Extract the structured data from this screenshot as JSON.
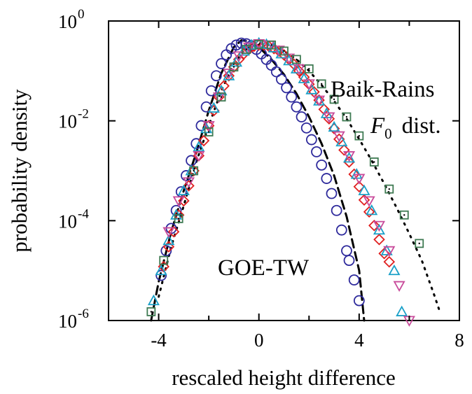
{
  "chart_data": {
    "type": "scatter",
    "xlabel": "rescaled height difference",
    "ylabel": "probability density",
    "xlim": [
      -6,
      8
    ],
    "ylim_log10": [
      -6,
      0
    ],
    "y_scale": "log",
    "grid": false,
    "x_ticks": [
      {
        "value": -4,
        "label": "-4"
      },
      {
        "value": 0,
        "label": "0"
      },
      {
        "value": 4,
        "label": "4"
      },
      {
        "value": 8,
        "label": "8"
      }
    ],
    "y_ticks": [
      {
        "exp": 0,
        "base": "10",
        "sup": "0"
      },
      {
        "exp": -2,
        "base": "10",
        "sup": "-2"
      },
      {
        "exp": -4,
        "base": "10",
        "sup": "-4"
      },
      {
        "exp": -6,
        "base": "10",
        "sup": "-6"
      }
    ],
    "annotations": {
      "goe": "GOE-TW",
      "br_line1": "Baik-Rains",
      "br_symbol": "F",
      "br_subscript": "0",
      "br_suffix": "dist."
    },
    "theory_curves": [
      {
        "style": "dashed",
        "color": "#000000",
        "x": [
          -4.3,
          -4,
          -3.5,
          -3,
          -2.5,
          -2,
          -1.5,
          -1,
          -0.7,
          -0.5,
          0,
          0.5,
          1,
          1.5,
          2,
          2.5,
          3,
          3.5,
          4,
          4.2
        ],
        "y": [
          1e-06,
          6e-06,
          6e-05,
          0.0004,
          0.0023,
          0.016,
          0.09,
          0.3,
          0.41,
          0.4,
          0.3,
          0.17,
          0.085,
          0.035,
          0.012,
          0.0035,
          0.0008,
          0.00012,
          1e-05,
          1e-06
        ]
      },
      {
        "style": "dotted",
        "color": "#000000",
        "x": [
          -4,
          -3.5,
          -3,
          -2.5,
          -2,
          -1.5,
          -1,
          -0.5,
          0,
          0.5,
          1,
          1.5,
          2,
          2.5,
          3,
          3.5,
          4,
          4.5,
          5,
          5.5,
          6,
          6.5,
          7,
          7.2
        ],
        "y": [
          3e-06,
          3e-05,
          0.0002,
          0.0015,
          0.008,
          0.04,
          0.14,
          0.29,
          0.36,
          0.33,
          0.25,
          0.17,
          0.1,
          0.052,
          0.025,
          0.011,
          0.0043,
          0.0016,
          0.00055,
          0.00018,
          5.5e-05,
          1.6e-05,
          3.2e-06,
          1.6e-06
        ]
      }
    ],
    "series": [
      {
        "marker": "circle",
        "color": "#2e2a9c",
        "x": [
          -3.9,
          -3.7,
          -3.5,
          -3.3,
          -3.1,
          -2.9,
          -2.7,
          -2.5,
          -2.3,
          -2.1,
          -1.9,
          -1.7,
          -1.5,
          -1.3,
          -1.1,
          -0.9,
          -0.7,
          -0.5,
          -0.3,
          -0.1,
          0.1,
          0.3,
          0.5,
          0.7,
          0.9,
          1.1,
          1.3,
          1.5,
          1.7,
          1.9,
          2.1,
          2.3,
          2.5,
          2.7,
          2.9,
          3.1,
          3.3,
          3.5,
          3.6,
          3.8,
          4.0
        ],
        "y": [
          8e-06,
          2.5e-05,
          7e-05,
          0.00016,
          0.00038,
          0.0008,
          0.0016,
          0.0035,
          0.008,
          0.019,
          0.04,
          0.08,
          0.14,
          0.21,
          0.28,
          0.33,
          0.36,
          0.35,
          0.32,
          0.27,
          0.22,
          0.17,
          0.13,
          0.096,
          0.068,
          0.046,
          0.03,
          0.019,
          0.012,
          0.0072,
          0.0042,
          0.0024,
          0.0013,
          0.0007,
          0.00035,
          0.00016,
          6.5e-05,
          2.5e-05,
          1.6e-05,
          6.5e-06,
          2.5e-06
        ]
      },
      {
        "marker": "diamond",
        "color": "#e02020",
        "x": [
          -3.8,
          -3.6,
          -3.4,
          -3.2,
          -3,
          -2.8,
          -2.6,
          -2.4,
          -2.2,
          -2,
          -1.8,
          -1.6,
          -1.4,
          -1.2,
          -1,
          -0.8,
          -0.6,
          -0.4,
          -0.2,
          0,
          0.2,
          0.4,
          0.6,
          0.8,
          1,
          1.2,
          1.4,
          1.6,
          1.8,
          2,
          2.2,
          2.4,
          2.6,
          2.8,
          3,
          3.2,
          3.4,
          3.6,
          3.8,
          4,
          4.2,
          4.4,
          4.6,
          4.8,
          5,
          5.2
        ],
        "y": [
          1.2e-05,
          3e-05,
          6e-05,
          0.00013,
          0.00025,
          0.0005,
          0.001,
          0.002,
          0.004,
          0.008,
          0.016,
          0.03,
          0.05,
          0.08,
          0.12,
          0.17,
          0.22,
          0.27,
          0.31,
          0.33,
          0.33,
          0.31,
          0.28,
          0.25,
          0.21,
          0.17,
          0.135,
          0.1,
          0.075,
          0.054,
          0.038,
          0.026,
          0.017,
          0.011,
          0.007,
          0.0043,
          0.0026,
          0.0015,
          0.00085,
          0.00048,
          0.00026,
          0.00015,
          8e-05,
          4.2e-05,
          2.2e-05,
          1.5e-05
        ]
      },
      {
        "marker": "triangle-up",
        "color": "#1aa0c8",
        "x": [
          -4.2,
          -3.9,
          -3.6,
          -3.3,
          -3.0,
          -2.7,
          -2.4,
          -2.1,
          -1.8,
          -1.5,
          -1.2,
          -0.9,
          -0.6,
          -0.3,
          0,
          0.3,
          0.6,
          0.9,
          1.2,
          1.5,
          1.8,
          2.1,
          2.4,
          2.7,
          3.0,
          3.3,
          3.6,
          3.9,
          4.2,
          4.5,
          4.8,
          5.1,
          5.4,
          5.7
        ],
        "y": [
          2.5e-06,
          1e-05,
          4e-05,
          0.00013,
          0.0004,
          0.001,
          0.003,
          0.007,
          0.018,
          0.04,
          0.08,
          0.15,
          0.25,
          0.33,
          0.36,
          0.34,
          0.29,
          0.22,
          0.16,
          0.11,
          0.07,
          0.042,
          0.025,
          0.014,
          0.0075,
          0.0038,
          0.0018,
          0.00085,
          0.0004,
          0.00016,
          6.5e-05,
          2.5e-05,
          1e-05,
          1.5e-06
        ]
      },
      {
        "marker": "triangle-down",
        "color": "#c84a9a",
        "x": [
          -3.6,
          -3.2,
          -2.8,
          -2.4,
          -2.0,
          -1.6,
          -1.2,
          -0.8,
          -0.4,
          0,
          0.4,
          0.8,
          1.2,
          1.6,
          2.0,
          2.4,
          2.8,
          3.2,
          3.6,
          4.0,
          4.4,
          4.8,
          5.2,
          5.6,
          6.0
        ],
        "y": [
          6e-05,
          0.00025,
          0.0006,
          0.002,
          0.008,
          0.03,
          0.09,
          0.2,
          0.3,
          0.35,
          0.33,
          0.26,
          0.18,
          0.11,
          0.055,
          0.026,
          0.012,
          0.005,
          0.002,
          0.0007,
          0.00025,
          8e-05,
          2.5e-05,
          5e-06,
          1e-06
        ]
      },
      {
        "marker": "square",
        "color": "#3e7a52",
        "x": [
          -4.3,
          -3.8,
          -3.2,
          -2.6,
          -2.0,
          -1.5,
          -1.0,
          -0.5,
          0,
          0.5,
          1.0,
          1.5,
          2.0,
          2.5,
          3.0,
          3.5,
          4.0,
          4.6,
          5.2,
          5.8,
          6.4
        ],
        "y": [
          1.5e-06,
          1.6e-05,
          0.00011,
          0.001,
          0.006,
          0.03,
          0.12,
          0.27,
          0.34,
          0.33,
          0.25,
          0.17,
          0.11,
          0.055,
          0.027,
          0.012,
          0.005,
          0.0015,
          0.00043,
          0.00013,
          3.5e-05
        ]
      }
    ]
  }
}
